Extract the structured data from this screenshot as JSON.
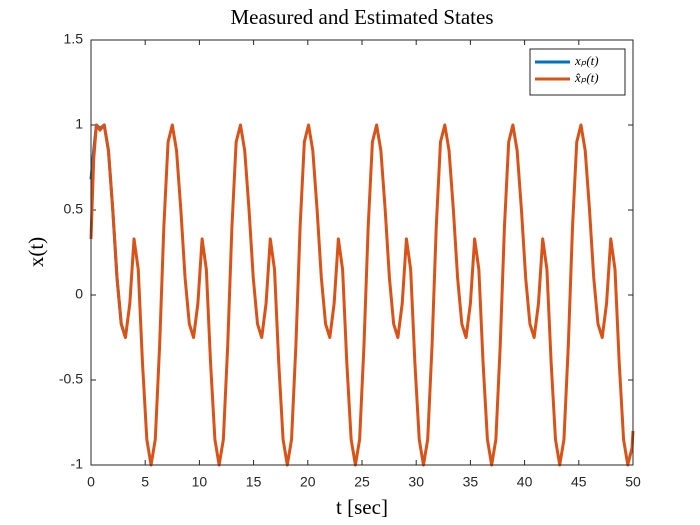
{
  "chart_data": {
    "type": "line",
    "title": "Measured and Estimated States",
    "xlabel": "t [sec]",
    "ylabel": "x(t)",
    "xlim": [
      0,
      50
    ],
    "xticks": [
      0,
      5,
      10,
      15,
      20,
      25,
      30,
      35,
      40,
      45,
      50
    ],
    "ylim": [
      -1,
      1.5
    ],
    "yticks": [
      -1,
      -0.5,
      0,
      0.5,
      1,
      1.5
    ],
    "legend": "top-right",
    "series": [
      {
        "name": "xₚ(t)",
        "color": "#0072bd",
        "x": [
          0,
          0.25,
          0.5,
          0.83,
          1.22,
          1.61,
          2.01,
          2.4,
          2.79,
          3.18
        ],
        "values": [
          0.68,
          0.85,
          1.0,
          0.98,
          1.0,
          0.85,
          0.5,
          0.1,
          -0.17,
          -0.25
        ]
      },
      {
        "name": "x̂ₚ(t)",
        "color": "#d95319",
        "x": [
          0,
          0.25,
          0.5,
          0.83,
          1.22,
          1.61,
          2.01,
          2.4,
          2.79,
          3.18,
          3.58,
          3.97,
          4.36,
          4.75,
          5.15,
          5.54,
          5.93,
          6.33,
          6.72,
          7.11,
          7.5,
          7.89,
          8.29,
          8.68,
          9.07,
          9.46,
          9.86,
          10.25,
          10.64,
          11.03,
          11.43,
          11.82,
          12.21,
          12.61,
          13.0,
          13.39,
          13.79,
          14.18,
          14.58,
          14.97,
          15.36,
          15.75,
          16.15,
          16.54,
          16.93,
          17.32,
          17.72,
          18.11,
          18.5,
          18.9,
          19.29,
          19.68,
          20.07,
          20.46,
          20.86,
          21.25,
          21.64,
          22.03,
          22.43,
          22.82,
          23.21,
          23.6,
          24.0,
          24.39,
          24.78,
          25.18,
          25.57,
          25.96,
          26.35,
          26.74,
          27.14,
          27.53,
          27.92,
          28.31,
          28.71,
          29.1,
          29.49,
          29.88,
          30.28,
          30.67,
          31.06,
          31.46,
          31.85,
          32.24,
          32.64,
          33.03,
          33.43,
          33.82,
          34.21,
          34.6,
          35.0,
          35.39,
          35.78,
          36.17,
          36.57,
          36.96,
          37.35,
          37.75,
          38.14,
          38.53,
          38.92,
          39.31,
          39.71,
          40.1,
          40.49,
          40.88,
          41.28,
          41.67,
          42.06,
          42.45,
          42.85,
          43.24,
          43.63,
          44.03,
          44.42,
          44.81,
          45.2,
          45.59,
          45.99,
          46.38,
          46.77,
          47.16,
          47.56,
          47.95,
          48.34,
          48.73,
          49.13,
          49.52,
          49.91,
          50
        ],
        "values": [
          0.33,
          0.8,
          1.0,
          0.97,
          1.0,
          0.85,
          0.5,
          0.1,
          -0.17,
          -0.25,
          -0.05,
          0.33,
          0.15,
          -0.4,
          -0.85,
          -1.0,
          -0.85,
          -0.3,
          0.4,
          0.9,
          1.0,
          0.85,
          0.5,
          0.1,
          -0.17,
          -0.25,
          -0.05,
          0.33,
          0.15,
          -0.4,
          -0.85,
          -1.0,
          -0.85,
          -0.3,
          0.4,
          0.9,
          1.0,
          0.85,
          0.5,
          0.1,
          -0.17,
          -0.25,
          -0.05,
          0.33,
          0.15,
          -0.4,
          -0.85,
          -1.0,
          -0.85,
          -0.3,
          0.4,
          0.9,
          1.0,
          0.85,
          0.5,
          0.1,
          -0.17,
          -0.25,
          -0.05,
          0.33,
          0.15,
          -0.4,
          -0.85,
          -1.0,
          -0.85,
          -0.3,
          0.4,
          0.9,
          1.0,
          0.85,
          0.5,
          0.1,
          -0.17,
          -0.25,
          -0.05,
          0.33,
          0.15,
          -0.4,
          -0.85,
          -1.0,
          -0.85,
          -0.3,
          0.4,
          0.9,
          1.0,
          0.85,
          0.5,
          0.1,
          -0.17,
          -0.25,
          -0.05,
          0.33,
          0.15,
          -0.4,
          -0.85,
          -1.0,
          -0.85,
          -0.3,
          0.4,
          0.9,
          1.0,
          0.85,
          0.5,
          0.1,
          -0.17,
          -0.25,
          -0.05,
          0.33,
          0.15,
          -0.4,
          -0.85,
          -1.0,
          -0.85,
          -0.3,
          0.4,
          0.9,
          1.0,
          0.85,
          0.5,
          0.1,
          -0.17,
          -0.25,
          -0.05,
          0.33,
          0.15,
          -0.4,
          -0.85,
          -1.0,
          -0.9,
          -0.8
        ]
      }
    ]
  }
}
